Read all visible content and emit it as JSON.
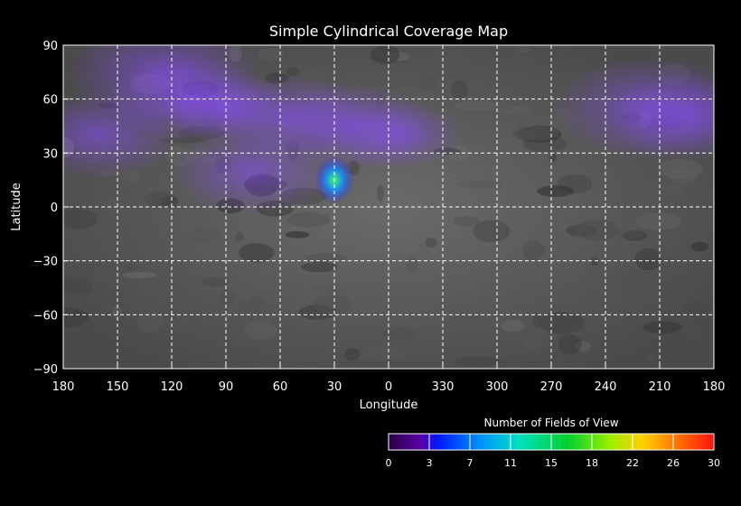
{
  "chart_data": {
    "type": "heatmap",
    "title": "Simple Cylindrical Coverage Map",
    "xlabel": "Longitude",
    "ylabel": "Latitude",
    "x_ticks": [
      "180",
      "150",
      "120",
      "90",
      "60",
      "30",
      "0",
      "330",
      "300",
      "270",
      "240",
      "210",
      "180"
    ],
    "y_ticks": [
      "90",
      "60",
      "30",
      "0",
      "−30",
      "−60",
      "−90"
    ],
    "xlim": [
      180,
      -180
    ],
    "ylim": [
      -90,
      90
    ],
    "grid": true,
    "background": "grayscale planetary surface mosaic",
    "coverage_regions": [
      {
        "lon": 125,
        "lat": 75,
        "count": 3
      },
      {
        "lon": 110,
        "lat": 60,
        "count": 2
      },
      {
        "lon": 160,
        "lat": 40,
        "count": 2
      },
      {
        "lon": 90,
        "lat": 55,
        "count": 1
      },
      {
        "lon": 55,
        "lat": 50,
        "count": 2
      },
      {
        "lon": 75,
        "lat": 20,
        "count": 2
      },
      {
        "lon": 20,
        "lat": 45,
        "count": 2
      },
      {
        "lon": -5,
        "lat": 40,
        "count": 1
      },
      {
        "lon": 30,
        "lat": 15,
        "count": 12
      },
      {
        "lon": -145,
        "lat": 55,
        "count": 3
      },
      {
        "lon": -165,
        "lat": 50,
        "count": 2
      }
    ],
    "colorbar": {
      "label": "Number of Fields of View",
      "ticks": [
        "0",
        "3",
        "7",
        "11",
        "15",
        "18",
        "22",
        "26",
        "30"
      ],
      "range": [
        0,
        30
      ],
      "colors": [
        "#3a0058",
        "#5a00aa",
        "#0018ff",
        "#0090ff",
        "#00e0c0",
        "#00d030",
        "#9cf000",
        "#ffd000",
        "#ff7a00",
        "#ff1010"
      ]
    }
  }
}
